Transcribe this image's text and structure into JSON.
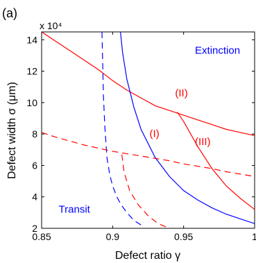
{
  "chart_data": {
    "type": "line",
    "panel_label": "(a)",
    "xlabel": "Defect  ratio  γ",
    "ylabel": "Defect  width  σ  (μm)",
    "y_scale_label": "x 10⁴",
    "xlim": [
      0.85,
      1.0
    ],
    "ylim": [
      2,
      14.5
    ],
    "xticks": [
      "0.85",
      "0.9",
      "0.95",
      "1"
    ],
    "yticks": [
      "2",
      "4",
      "6",
      "8",
      "10",
      "12",
      "14"
    ],
    "xtick_values": [
      0.85,
      0.9,
      0.95,
      1.0
    ],
    "ytick_values": [
      2,
      4,
      6,
      8,
      10,
      12,
      14
    ],
    "grid": false,
    "annotations": [
      {
        "text": "Extinction",
        "x": 0.958,
        "y": 13.1,
        "color": "#0000ff"
      },
      {
        "text": "Transit",
        "x": 0.862,
        "y": 3.0,
        "color": "#0000ff"
      },
      {
        "text": "(II)",
        "x": 0.944,
        "y": 10.4,
        "color": "#ff0000"
      },
      {
        "text": "(I)",
        "x": 0.926,
        "y": 7.8,
        "color": "#ff0000"
      },
      {
        "text": "(III)",
        "x": 0.958,
        "y": 7.3,
        "color": "#ff0000"
      }
    ],
    "series": [
      {
        "color": "#ff0000",
        "dash": false,
        "x": [
          0.85,
          0.86,
          0.87,
          0.88,
          0.89,
          0.9,
          0.91,
          0.92,
          0.93,
          0.94,
          0.95,
          0.96,
          0.97,
          0.98,
          0.99,
          1.0
        ],
        "y": [
          14.5,
          13.9,
          13.3,
          12.7,
          12.1,
          11.4,
          10.8,
          10.3,
          9.8,
          9.5,
          9.2,
          8.9,
          8.6,
          8.3,
          8.1,
          7.9
        ]
      },
      {
        "color": "#ff0000",
        "dash": false,
        "x": [
          0.9455,
          0.95,
          0.96,
          0.97,
          0.98,
          0.99,
          1.0
        ],
        "y": [
          9.4,
          8.8,
          7.2,
          5.8,
          4.7,
          3.9,
          3.2
        ]
      },
      {
        "color": "#0000ff",
        "dash": false,
        "x": [
          0.9055,
          0.907,
          0.91,
          0.915,
          0.92,
          0.93,
          0.94,
          0.95,
          0.96,
          0.97,
          0.98,
          0.99,
          1.0
        ],
        "y": [
          14.5,
          13.2,
          11.5,
          9.7,
          8.3,
          6.5,
          5.3,
          4.4,
          3.8,
          3.3,
          2.9,
          2.6,
          2.3
        ]
      },
      {
        "color": "#0000ff",
        "dash": true,
        "x": [
          0.8925,
          0.8935,
          0.8945,
          0.896,
          0.898,
          0.9,
          0.903,
          0.906,
          0.91,
          0.915,
          0.922
        ],
        "y": [
          14.5,
          10.5,
          8.5,
          6.5,
          5.4,
          4.7,
          4.0,
          3.5,
          3.0,
          2.5,
          2.1
        ]
      },
      {
        "color": "#ff0000",
        "dash": true,
        "x": [
          0.85,
          0.86,
          0.87,
          0.88,
          0.89,
          0.9,
          0.91,
          0.92,
          0.93,
          0.94,
          0.95,
          0.96,
          0.97,
          0.98,
          0.99,
          1.0
        ],
        "y": [
          8.1,
          7.8,
          7.55,
          7.3,
          7.1,
          6.9,
          6.75,
          6.6,
          6.45,
          6.3,
          6.1,
          5.95,
          5.8,
          5.6,
          5.45,
          5.3
        ]
      },
      {
        "color": "#ff0000",
        "dash": true,
        "x": [
          0.9065,
          0.908,
          0.912,
          0.918,
          0.925,
          0.932,
          0.94
        ],
        "y": [
          6.7,
          5.6,
          4.4,
          3.5,
          2.8,
          2.3,
          2.0
        ]
      }
    ]
  }
}
